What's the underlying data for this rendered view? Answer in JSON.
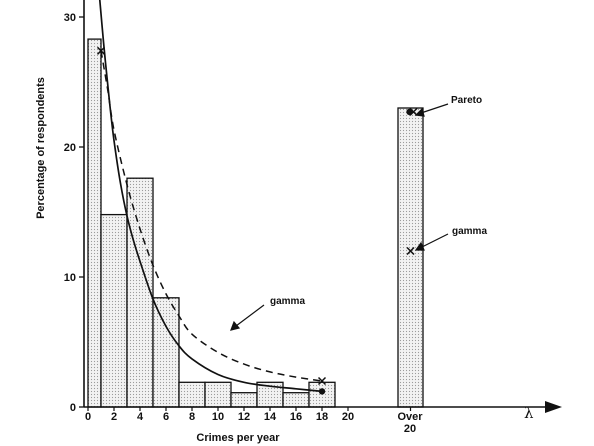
{
  "chart_data": {
    "type": "bar",
    "xlabel": "Crimes per year",
    "ylabel": "Percentage of respondents",
    "x_axis_symbol": "λ",
    "xlim": [
      0,
      20
    ],
    "ylim": [
      0,
      30
    ],
    "x_ticks": [
      "0",
      "2",
      "4",
      "6",
      "8",
      "10",
      "12",
      "14",
      "16",
      "18",
      "20"
    ],
    "y_ticks": [
      "0",
      "10",
      "20",
      "30"
    ],
    "bins": [
      {
        "from": 0,
        "to": 1,
        "value": 28.3
      },
      {
        "from": 1,
        "to": 3,
        "value": 14.8
      },
      {
        "from": 3,
        "to": 5,
        "value": 17.6
      },
      {
        "from": 5,
        "to": 7,
        "value": 8.4
      },
      {
        "from": 7,
        "to": 9,
        "value": 1.9
      },
      {
        "from": 9,
        "to": 11,
        "value": 1.9
      },
      {
        "from": 11,
        "to": 13,
        "value": 1.1
      },
      {
        "from": 13,
        "to": 15,
        "value": 1.9
      },
      {
        "from": 15,
        "to": 17,
        "value": 1.1
      },
      {
        "from": 17,
        "to": 19,
        "value": 1.9
      }
    ],
    "over_bin": {
      "label_line1": "Over",
      "label_line2": "20",
      "value": 23.0
    },
    "series": [
      {
        "name": "gamma",
        "style": "dashed",
        "x": [
          1,
          1.5,
          2,
          3,
          4,
          5,
          6,
          7,
          8,
          10,
          12,
          14,
          16,
          18
        ],
        "y": [
          27.4,
          24.5,
          21.3,
          17.1,
          13.7,
          10.9,
          8.7,
          7.0,
          5.6,
          4.2,
          3.3,
          2.7,
          2.3,
          2.0
        ],
        "markers": [
          {
            "x": 1,
            "y": 27.4
          },
          {
            "x": 18,
            "y": 2.0
          }
        ],
        "over_point": 12.0
      },
      {
        "name": "Pareto",
        "style": "solid",
        "x": [
          0.85,
          1.2,
          1.6,
          2,
          2.5,
          3,
          3.5,
          4,
          5,
          6,
          7,
          8,
          10,
          12,
          14,
          16,
          18
        ],
        "y": [
          32,
          28,
          24,
          20.5,
          17.2,
          14.7,
          12.8,
          11.2,
          8.3,
          6.2,
          4.7,
          3.7,
          2.5,
          1.9,
          1.6,
          1.4,
          1.2
        ],
        "markers": [
          {
            "x": 18,
            "y": 1.2
          }
        ],
        "over_point": 22.7
      }
    ],
    "annotations": [
      {
        "text": "gamma",
        "target": "curve"
      },
      {
        "text": "Pareto",
        "target": "over"
      },
      {
        "text": "gamma",
        "target": "over"
      }
    ],
    "colors": {
      "bar_fill": "#ececec",
      "stroke": "#111111"
    }
  }
}
